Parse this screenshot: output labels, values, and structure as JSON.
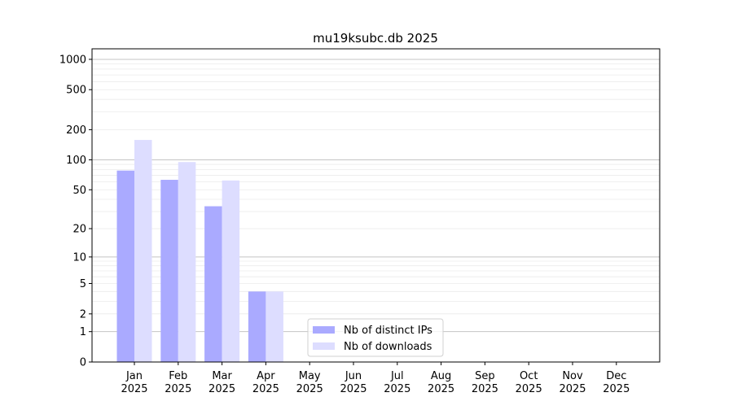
{
  "chart_data": {
    "type": "bar",
    "title": "mu19ksubc.db 2025",
    "categories": [
      "Jan\n2025",
      "Feb\n2025",
      "Mar\n2025",
      "Apr\n2025",
      "May\n2025",
      "Jun\n2025",
      "Jul\n2025",
      "Aug\n2025",
      "Sep\n2025",
      "Oct\n2025",
      "Nov\n2025",
      "Dec\n2025"
    ],
    "series": [
      {
        "name": "Nb of distinct IPs",
        "color": "#aaaaff",
        "values": [
          78,
          63,
          34,
          4,
          0,
          0,
          0,
          0,
          0,
          0,
          0,
          0
        ]
      },
      {
        "name": "Nb of downloads",
        "color": "#ddddff",
        "values": [
          158,
          95,
          62,
          4,
          0,
          0,
          0,
          0,
          0,
          0,
          0,
          0
        ]
      }
    ],
    "yscale": "log(1+y)",
    "yticks": [
      0,
      1,
      2,
      5,
      10,
      20,
      50,
      100,
      200,
      500,
      1000
    ],
    "ylim": [
      0,
      1300
    ],
    "grid": true,
    "legend": "bottom-center"
  }
}
